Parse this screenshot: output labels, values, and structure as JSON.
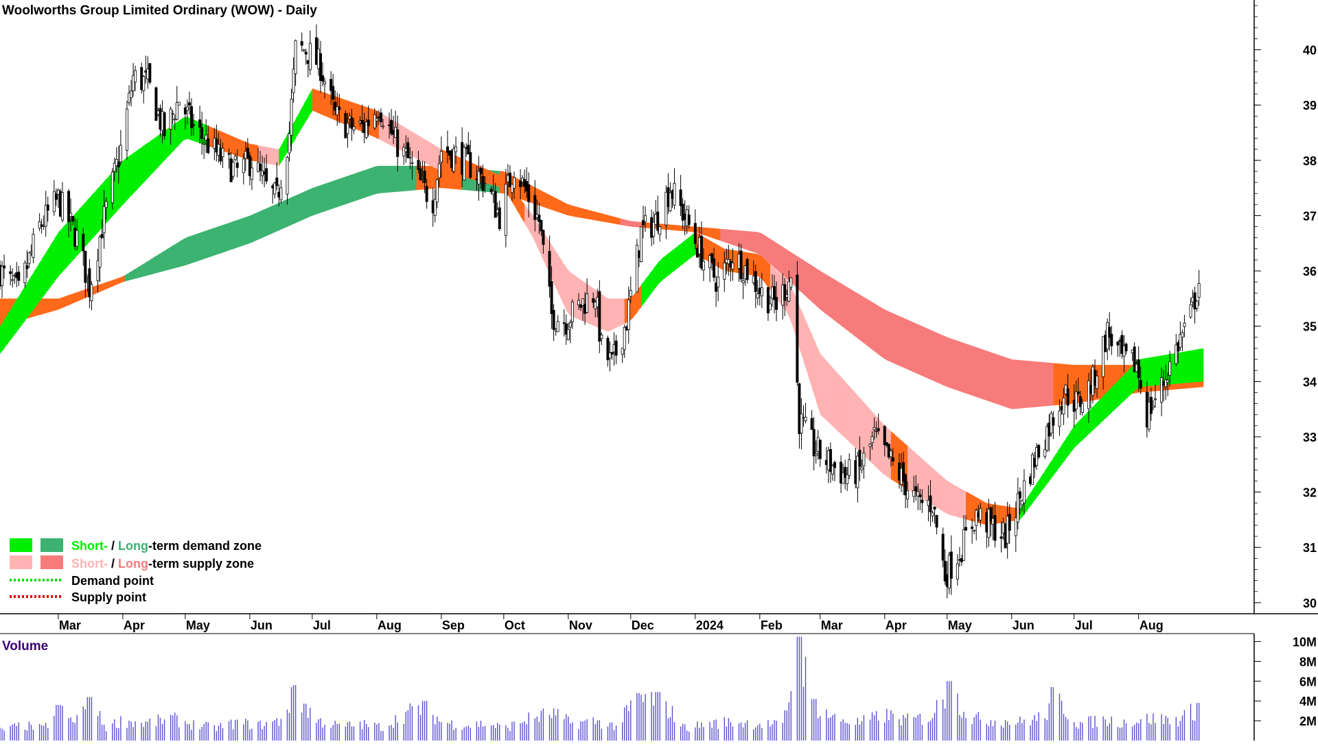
{
  "title": "Woolworths Group Limited Ordinary (WOW) - Daily",
  "volume_label": "Volume",
  "legend": {
    "items": [
      {
        "short_label": "Short-",
        "separator": " / ",
        "long_label": "Long",
        "rest": "-term demand zone",
        "short_color": "#00ee00",
        "long_color": "#3cb371"
      },
      {
        "short_label": "Short-",
        "separator": " / ",
        "long_label": "Long",
        "rest": "-term supply zone",
        "short_color": "#ffb3b3",
        "long_color": "#f77b7b"
      }
    ],
    "demand_point_label": "Demand point",
    "supply_point_label": "Supply point",
    "demand_point_color": "#00dd00",
    "supply_point_color": "#dd0000"
  },
  "colors": {
    "short_demand": "#00ee00",
    "long_demand": "#3cb371",
    "short_supply": "#ffb3b3",
    "long_supply": "#f77b7b",
    "overlap_zone": "#ff6a1a",
    "candle": "#000000",
    "volume_bar": "#5a4fcf",
    "volume_label": "#3a0075",
    "axis": "#000000"
  },
  "chart_data": {
    "type": "candlestick",
    "title": "Woolworths Group Limited Ordinary (WOW) - Daily",
    "price_axis": {
      "ticks": [
        "30",
        "31",
        "32",
        "33",
        "34",
        "35",
        "36",
        "37",
        "38",
        "39",
        "40"
      ],
      "range": [
        29.8,
        40.9
      ]
    },
    "volume_axis": {
      "ticks": [
        "2M",
        "4M",
        "6M",
        "8M",
        "10M"
      ],
      "range": [
        0,
        10.8
      ]
    },
    "x_axis": {
      "labels": [
        "Mar",
        "Apr",
        "May",
        "Jun",
        "Jul",
        "Aug",
        "Sep",
        "Oct",
        "Nov",
        "Dec",
        "2024",
        "Feb",
        "Mar",
        "Apr",
        "May",
        "Jun",
        "Jul",
        "Aug"
      ],
      "label_dates": [
        "2023-03-01",
        "2023-04-01",
        "2023-05-01",
        "2023-06-01",
        "2023-07-01",
        "2023-08-01",
        "2023-09-01",
        "2023-10-01",
        "2023-11-01",
        "2023-12-01",
        "2024-01-01",
        "2024-02-01",
        "2024-03-01",
        "2024-04-01",
        "2024-05-01",
        "2024-06-01",
        "2024-07-01",
        "2024-08-01"
      ],
      "range": [
        "2023-02-01",
        "2024-09-10"
      ]
    },
    "close_path": [
      [
        "2023-02-01",
        36.0
      ],
      [
        "2023-02-10",
        35.6
      ],
      [
        "2023-02-20",
        36.8
      ],
      [
        "2023-03-01",
        37.3
      ],
      [
        "2023-03-10",
        36.6
      ],
      [
        "2023-03-16",
        35.7
      ],
      [
        "2023-03-22",
        36.8
      ],
      [
        "2023-03-31",
        38.2
      ],
      [
        "2023-04-06",
        39.5
      ],
      [
        "2023-04-13",
        39.4
      ],
      [
        "2023-04-21",
        38.5
      ],
      [
        "2023-04-28",
        39.1
      ],
      [
        "2023-05-05",
        38.6
      ],
      [
        "2023-05-12",
        38.3
      ],
      [
        "2023-05-19",
        38.0
      ],
      [
        "2023-05-26",
        37.8
      ],
      [
        "2023-06-02",
        38.0
      ],
      [
        "2023-06-09",
        37.5
      ],
      [
        "2023-06-14",
        37.3
      ],
      [
        "2023-06-20",
        38.5
      ],
      [
        "2023-06-23",
        40.0
      ],
      [
        "2023-06-28",
        40.0
      ],
      [
        "2023-07-05",
        39.7
      ],
      [
        "2023-07-12",
        38.8
      ],
      [
        "2023-07-19",
        38.6
      ],
      [
        "2023-07-26",
        38.6
      ],
      [
        "2023-08-02",
        39.0
      ],
      [
        "2023-08-09",
        38.4
      ],
      [
        "2023-08-16",
        38.0
      ],
      [
        "2023-08-23",
        37.5
      ],
      [
        "2023-08-28",
        37.3
      ],
      [
        "2023-09-01",
        38.2
      ],
      [
        "2023-09-08",
        38.1
      ],
      [
        "2023-09-15",
        37.9
      ],
      [
        "2023-09-22",
        37.6
      ],
      [
        "2023-09-29",
        37.0
      ],
      [
        "2023-10-06",
        37.9
      ],
      [
        "2023-10-11",
        37.5
      ],
      [
        "2023-10-18",
        36.9
      ],
      [
        "2023-10-24",
        35.2
      ],
      [
        "2023-10-31",
        35.1
      ],
      [
        "2023-11-07",
        35.4
      ],
      [
        "2023-11-14",
        35.6
      ],
      [
        "2023-11-17",
        34.6
      ],
      [
        "2023-11-22",
        34.3
      ],
      [
        "2023-11-29",
        35.1
      ],
      [
        "2023-12-06",
        36.7
      ],
      [
        "2023-12-13",
        36.9
      ],
      [
        "2023-12-20",
        37.5
      ],
      [
        "2023-12-28",
        36.9
      ],
      [
        "2024-01-05",
        36.2
      ],
      [
        "2024-01-12",
        35.8
      ],
      [
        "2024-01-19",
        36.3
      ],
      [
        "2024-01-26",
        36.0
      ],
      [
        "2024-02-02",
        35.6
      ],
      [
        "2024-02-09",
        35.4
      ],
      [
        "2024-02-16",
        35.9
      ],
      [
        "2024-02-20",
        33.3
      ],
      [
        "2024-02-27",
        32.8
      ],
      [
        "2024-03-06",
        32.5
      ],
      [
        "2024-03-13",
        32.3
      ],
      [
        "2024-03-20",
        32.4
      ],
      [
        "2024-03-27",
        33.0
      ],
      [
        "2024-04-03",
        32.6
      ],
      [
        "2024-04-10",
        32.2
      ],
      [
        "2024-04-17",
        31.8
      ],
      [
        "2024-04-24",
        31.8
      ],
      [
        "2024-04-30",
        30.5
      ],
      [
        "2024-05-08",
        31.0
      ],
      [
        "2024-05-15",
        31.6
      ],
      [
        "2024-05-22",
        31.4
      ],
      [
        "2024-05-29",
        31.2
      ],
      [
        "2024-06-05",
        31.9
      ],
      [
        "2024-06-12",
        32.6
      ],
      [
        "2024-06-19",
        33.2
      ],
      [
        "2024-06-26",
        33.8
      ],
      [
        "2024-07-03",
        33.6
      ],
      [
        "2024-07-10",
        34.0
      ],
      [
        "2024-07-17",
        34.9
      ],
      [
        "2024-07-24",
        34.4
      ],
      [
        "2024-07-31",
        34.3
      ],
      [
        "2024-08-05",
        33.4
      ],
      [
        "2024-08-12",
        33.9
      ],
      [
        "2024-08-19",
        34.6
      ],
      [
        "2024-08-26",
        35.2
      ],
      [
        "2024-08-30",
        35.8
      ]
    ],
    "short_term_zone": {
      "upper": [
        [
          "2023-02-01",
          35.0
        ],
        [
          "2023-03-01",
          36.7
        ],
        [
          "2023-04-01",
          38.0
        ],
        [
          "2023-05-01",
          38.8
        ],
        [
          "2023-06-01",
          38.3
        ],
        [
          "2023-06-15",
          38.2
        ],
        [
          "2023-07-01",
          39.3
        ],
        [
          "2023-08-01",
          38.9
        ],
        [
          "2023-09-01",
          38.2
        ],
        [
          "2023-10-01",
          37.7
        ],
        [
          "2023-10-15",
          37.0
        ],
        [
          "2023-11-01",
          36.0
        ],
        [
          "2023-11-20",
          35.5
        ],
        [
          "2023-12-01",
          35.5
        ],
        [
          "2023-12-15",
          36.2
        ],
        [
          "2024-01-01",
          36.7
        ],
        [
          "2024-01-15",
          36.4
        ],
        [
          "2024-02-01",
          36.3
        ],
        [
          "2024-02-15",
          35.8
        ],
        [
          "2024-03-01",
          34.5
        ],
        [
          "2024-04-01",
          33.2
        ],
        [
          "2024-05-01",
          32.2
        ],
        [
          "2024-05-20",
          31.8
        ],
        [
          "2024-06-05",
          31.7
        ],
        [
          "2024-07-01",
          33.2
        ],
        [
          "2024-08-01",
          34.4
        ],
        [
          "2024-09-01",
          34.6
        ]
      ],
      "lower": [
        [
          "2023-02-01",
          34.5
        ],
        [
          "2023-03-01",
          35.9
        ],
        [
          "2023-04-01",
          37.2
        ],
        [
          "2023-05-01",
          38.4
        ],
        [
          "2023-06-01",
          38.0
        ],
        [
          "2023-06-15",
          37.9
        ],
        [
          "2023-07-01",
          38.9
        ],
        [
          "2023-08-01",
          38.4
        ],
        [
          "2023-09-01",
          37.8
        ],
        [
          "2023-10-01",
          37.5
        ],
        [
          "2023-10-15",
          36.6
        ],
        [
          "2023-11-01",
          35.2
        ],
        [
          "2023-11-20",
          34.9
        ],
        [
          "2023-12-01",
          35.1
        ],
        [
          "2023-12-15",
          35.8
        ],
        [
          "2024-01-01",
          36.3
        ],
        [
          "2024-01-15",
          36.0
        ],
        [
          "2024-02-01",
          35.9
        ],
        [
          "2024-02-15",
          35.2
        ],
        [
          "2024-03-01",
          33.4
        ],
        [
          "2024-04-01",
          32.3
        ],
        [
          "2024-05-01",
          31.6
        ],
        [
          "2024-05-20",
          31.4
        ],
        [
          "2024-06-05",
          31.5
        ],
        [
          "2024-07-01",
          32.8
        ],
        [
          "2024-08-01",
          33.9
        ],
        [
          "2024-09-01",
          34.0
        ]
      ],
      "state": [
        [
          "2023-02-01",
          "demand"
        ],
        [
          "2023-05-12",
          "mixed"
        ],
        [
          "2023-06-05",
          "supply"
        ],
        [
          "2023-06-15",
          "demand"
        ],
        [
          "2023-07-01",
          "mixed"
        ],
        [
          "2023-08-01",
          "supply"
        ],
        [
          "2023-09-01",
          "mixed"
        ],
        [
          "2023-10-10",
          "supply"
        ],
        [
          "2023-11-28",
          "mixed"
        ],
        [
          "2023-12-05",
          "demand"
        ],
        [
          "2024-01-01",
          "mixed"
        ],
        [
          "2024-02-05",
          "supply"
        ],
        [
          "2024-04-03",
          "mixed"
        ],
        [
          "2024-04-12",
          "supply"
        ],
        [
          "2024-05-10",
          "mixed"
        ],
        [
          "2024-06-05",
          "demand"
        ]
      ]
    },
    "long_term_zone": {
      "upper": [
        [
          "2023-02-01",
          35.5
        ],
        [
          "2023-03-01",
          35.5
        ],
        [
          "2023-04-01",
          35.9
        ],
        [
          "2023-05-01",
          36.6
        ],
        [
          "2023-06-01",
          37.0
        ],
        [
          "2023-07-01",
          37.5
        ],
        [
          "2023-08-01",
          37.9
        ],
        [
          "2023-09-01",
          37.9
        ],
        [
          "2023-10-01",
          37.8
        ],
        [
          "2023-11-01",
          37.2
        ],
        [
          "2023-12-01",
          36.9
        ],
        [
          "2024-01-01",
          36.8
        ],
        [
          "2024-02-01",
          36.7
        ],
        [
          "2024-03-01",
          36.0
        ],
        [
          "2024-04-01",
          35.3
        ],
        [
          "2024-05-01",
          34.8
        ],
        [
          "2024-06-01",
          34.4
        ],
        [
          "2024-07-01",
          34.3
        ],
        [
          "2024-08-01",
          34.3
        ],
        [
          "2024-09-01",
          34.3
        ]
      ],
      "lower": [
        [
          "2023-02-01",
          35.0
        ],
        [
          "2023-03-01",
          35.3
        ],
        [
          "2023-04-01",
          35.8
        ],
        [
          "2023-05-01",
          36.1
        ],
        [
          "2023-06-01",
          36.5
        ],
        [
          "2023-07-01",
          37.0
        ],
        [
          "2023-08-01",
          37.4
        ],
        [
          "2023-09-01",
          37.5
        ],
        [
          "2023-10-01",
          37.4
        ],
        [
          "2023-11-01",
          37.0
        ],
        [
          "2023-12-01",
          36.8
        ],
        [
          "2024-01-01",
          36.7
        ],
        [
          "2024-02-01",
          36.3
        ],
        [
          "2024-03-01",
          35.3
        ],
        [
          "2024-04-01",
          34.4
        ],
        [
          "2024-05-01",
          33.9
        ],
        [
          "2024-06-01",
          33.5
        ],
        [
          "2024-07-01",
          33.6
        ],
        [
          "2024-08-01",
          33.8
        ],
        [
          "2024-09-01",
          33.9
        ]
      ],
      "state": [
        [
          "2023-02-01",
          "mixed"
        ],
        [
          "2023-04-01",
          "demand"
        ],
        [
          "2023-08-20",
          "mixed"
        ],
        [
          "2023-09-10",
          "demand"
        ],
        [
          "2023-09-28",
          "mixed"
        ],
        [
          "2023-11-25",
          "supply"
        ],
        [
          "2023-12-05",
          "mixed"
        ],
        [
          "2024-01-12",
          "supply"
        ],
        [
          "2024-06-20",
          "mixed"
        ]
      ]
    },
    "volume_millions": [
      [
        "2023-02-01",
        1.2
      ],
      [
        "2023-02-12",
        1.8
      ],
      [
        "2023-02-22",
        1.4
      ],
      [
        "2023-03-01",
        3.6
      ],
      [
        "2023-03-08",
        2.2
      ],
      [
        "2023-03-16",
        4.4
      ],
      [
        "2023-03-24",
        1.6
      ],
      [
        "2023-04-01",
        2.4
      ],
      [
        "2023-04-12",
        2.0
      ],
      [
        "2023-04-24",
        2.6
      ],
      [
        "2023-05-05",
        1.9
      ],
      [
        "2023-05-15",
        1.5
      ],
      [
        "2023-05-26",
        2.1
      ],
      [
        "2023-06-05",
        1.8
      ],
      [
        "2023-06-15",
        2.3
      ],
      [
        "2023-06-23",
        5.6
      ],
      [
        "2023-07-03",
        2.4
      ],
      [
        "2023-07-14",
        1.7
      ],
      [
        "2023-07-25",
        1.9
      ],
      [
        "2023-08-04",
        1.6
      ],
      [
        "2023-08-15",
        3.2
      ],
      [
        "2023-08-24",
        4.0
      ],
      [
        "2023-09-01",
        2.2
      ],
      [
        "2023-09-12",
        1.8
      ],
      [
        "2023-09-22",
        2.0
      ],
      [
        "2023-10-02",
        1.5
      ],
      [
        "2023-10-12",
        2.5
      ],
      [
        "2023-10-24",
        3.2
      ],
      [
        "2023-11-03",
        2.0
      ],
      [
        "2023-11-14",
        2.3
      ],
      [
        "2023-11-24",
        1.7
      ],
      [
        "2023-12-04",
        4.8
      ],
      [
        "2023-12-15",
        4.9
      ],
      [
        "2023-12-27",
        1.5
      ],
      [
        "2024-01-08",
        2.0
      ],
      [
        "2024-01-19",
        2.2
      ],
      [
        "2024-02-01",
        2.0
      ],
      [
        "2024-02-12",
        1.8
      ],
      [
        "2024-02-20",
        10.5
      ],
      [
        "2024-02-27",
        4.2
      ],
      [
        "2024-03-08",
        2.6
      ],
      [
        "2024-03-20",
        2.1
      ],
      [
        "2024-04-01",
        3.0
      ],
      [
        "2024-04-12",
        2.4
      ],
      [
        "2024-04-23",
        2.8
      ],
      [
        "2024-05-02",
        6.0
      ],
      [
        "2024-05-13",
        2.6
      ],
      [
        "2024-05-24",
        2.4
      ],
      [
        "2024-06-05",
        2.2
      ],
      [
        "2024-06-17",
        2.8
      ],
      [
        "2024-06-21",
        5.4
      ],
      [
        "2024-07-03",
        2.0
      ],
      [
        "2024-07-15",
        2.4
      ],
      [
        "2024-07-26",
        2.2
      ],
      [
        "2024-08-07",
        2.6
      ],
      [
        "2024-08-19",
        2.4
      ],
      [
        "2024-08-30",
        3.8
      ]
    ]
  }
}
